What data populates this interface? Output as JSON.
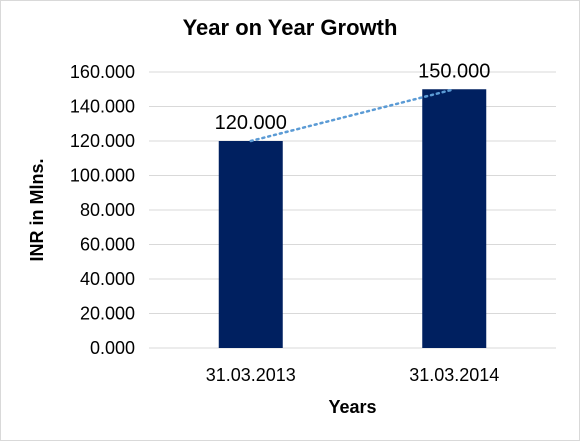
{
  "chart_data": {
    "type": "bar",
    "title": "Year on Year Growth",
    "xlabel": "Years",
    "ylabel": "INR  in Mlns.",
    "categories": [
      "31.03.2013",
      "31.03.2014"
    ],
    "values": [
      120,
      150
    ],
    "value_labels": [
      "120.000",
      "150.000"
    ],
    "ylim": [
      0,
      160
    ],
    "yticks": [
      0,
      20,
      40,
      60,
      80,
      100,
      120,
      140,
      160
    ],
    "ytick_labels": [
      "0.000",
      "20.000",
      "40.000",
      "60.000",
      "80.000",
      "100.000",
      "120.000",
      "140.000",
      "160.000"
    ],
    "grid": true,
    "trendline": "linear dotted",
    "colors": {
      "bar": "#002060",
      "trendline": "#5b9bd5",
      "grid": "#d9d9d9"
    }
  }
}
